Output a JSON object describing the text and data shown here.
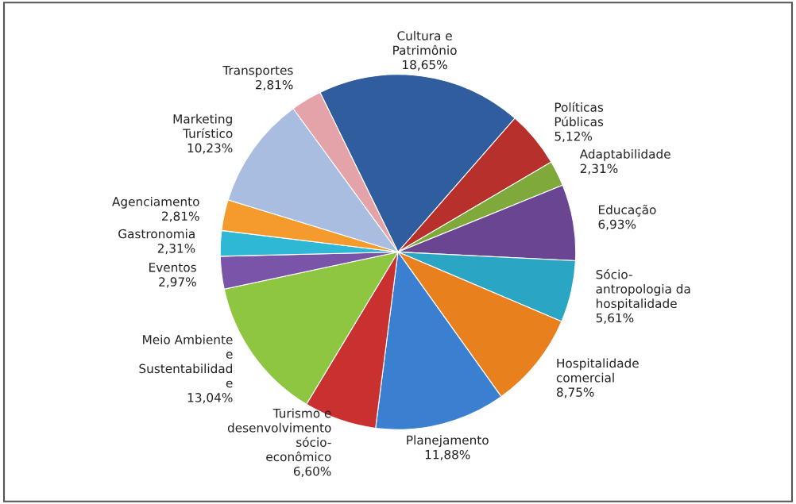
{
  "chart_data": {
    "type": "pie",
    "categories": [
      "Cultura e\nPatrimônio",
      "Políticas\nPúblicas",
      "Adaptabilidade",
      "Educação",
      "Sócio-\nantropologia da\nhospitalidade",
      "Hospitalidade\ncomercial",
      "Planejamento",
      "Turismo e\ndesenvolvimento\nsócio-\neconômico",
      "Meio Ambiente\ne\nSustentabilidad\ne",
      "Eventos",
      "Gastronomia",
      "Agenciamento",
      "Marketing\nTurístico",
      "Transportes"
    ],
    "values": [
      18.65,
      5.12,
      2.31,
      6.93,
      5.61,
      8.75,
      11.88,
      6.6,
      13.04,
      2.97,
      2.31,
      2.81,
      10.23,
      2.81
    ],
    "value_labels": [
      "18,65%",
      "5,12%",
      "2,31%",
      "6,93%",
      "5,61%",
      "8,75%",
      "11,88%",
      "6,60%",
      "13,04%",
      "2,97%",
      "2,31%",
      "2,81%",
      "10,23%",
      "2,81%"
    ],
    "colors": [
      "#2f5d9e",
      "#b8302c",
      "#7fa93a",
      "#6a4592",
      "#2aa5c4",
      "#e8801e",
      "#3a7fd0",
      "#c8312f",
      "#8ec641",
      "#7a54a8",
      "#2fb8d6",
      "#f59a2c",
      "#a9bde0",
      "#e3a3a8"
    ]
  }
}
